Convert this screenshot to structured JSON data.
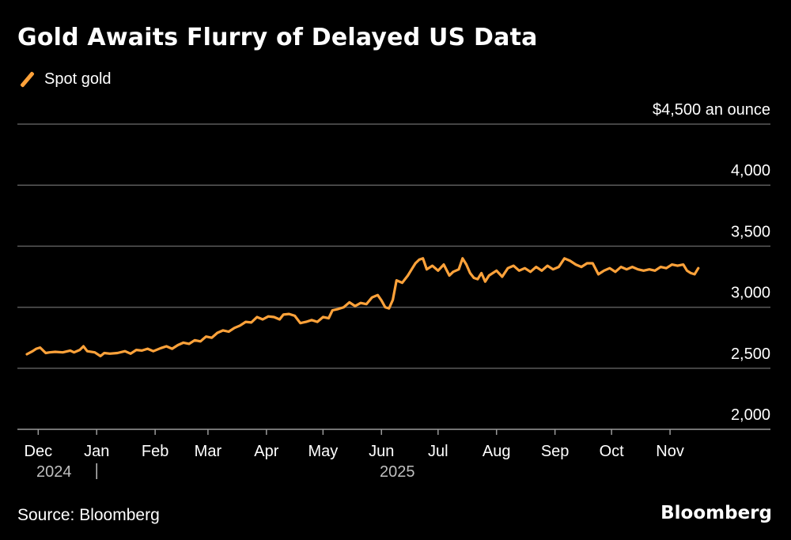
{
  "title": "Gold Awaits Flurry of Delayed US Data",
  "source": "Source: Bloomberg",
  "brand": "Bloomberg",
  "colors": {
    "background": "#000000",
    "series": "#ffa23a",
    "grid": "#5a5a5a",
    "text": "#ffffff"
  },
  "chart_data": {
    "type": "line",
    "x_start": "2024-11-25",
    "x_end": "2025-11-19",
    "ylim": [
      2000,
      4500
    ],
    "yticks": [
      {
        "value": 4500,
        "label": "$4,500 an ounce"
      },
      {
        "value": 4000,
        "label": "4,000"
      },
      {
        "value": 3500,
        "label": "3,500"
      },
      {
        "value": 3000,
        "label": "3,000"
      },
      {
        "value": 2500,
        "label": "2,500"
      },
      {
        "value": 2000,
        "label": "2,000"
      }
    ],
    "xticks": [
      {
        "date": "2024-12-01",
        "label": "Dec"
      },
      {
        "date": "2025-01-01",
        "label": "Jan"
      },
      {
        "date": "2025-02-01",
        "label": "Feb"
      },
      {
        "date": "2025-03-01",
        "label": "Mar"
      },
      {
        "date": "2025-04-01",
        "label": "Apr"
      },
      {
        "date": "2025-05-01",
        "label": "May"
      },
      {
        "date": "2025-06-01",
        "label": "Jun"
      },
      {
        "date": "2025-07-01",
        "label": "Jul"
      },
      {
        "date": "2025-08-01",
        "label": "Aug"
      },
      {
        "date": "2025-09-01",
        "label": "Sep"
      },
      {
        "date": "2025-10-01",
        "label": "Oct"
      },
      {
        "date": "2025-11-01",
        "label": "Nov"
      }
    ],
    "year_labels": [
      {
        "date": "2024-12-01",
        "label": "2024"
      },
      {
        "date": "2025-06-01",
        "label": "2025"
      }
    ],
    "year_divider": "2025-01-01",
    "grid": true,
    "legend": "top-left",
    "series": [
      {
        "name": "Spot gold",
        "points": [
          [
            "2024-11-25",
            2615
          ],
          [
            "2024-11-28",
            2640
          ],
          [
            "2024-11-30",
            2660
          ],
          [
            "2024-12-02",
            2670
          ],
          [
            "2024-12-05",
            2625
          ],
          [
            "2024-12-07",
            2630
          ],
          [
            "2024-12-10",
            2635
          ],
          [
            "2024-12-14",
            2630
          ],
          [
            "2024-12-18",
            2645
          ],
          [
            "2024-12-20",
            2630
          ],
          [
            "2024-12-23",
            2650
          ],
          [
            "2024-12-25",
            2680
          ],
          [
            "2024-12-27",
            2640
          ],
          [
            "2024-12-31",
            2630
          ],
          [
            "2025-01-03",
            2600
          ],
          [
            "2025-01-05",
            2625
          ],
          [
            "2025-01-08",
            2620
          ],
          [
            "2025-01-12",
            2625
          ],
          [
            "2025-01-16",
            2640
          ],
          [
            "2025-01-19",
            2620
          ],
          [
            "2025-01-22",
            2650
          ],
          [
            "2025-01-25",
            2645
          ],
          [
            "2025-01-28",
            2660
          ],
          [
            "2025-01-31",
            2640
          ],
          [
            "2025-02-04",
            2665
          ],
          [
            "2025-02-07",
            2680
          ],
          [
            "2025-02-10",
            2660
          ],
          [
            "2025-02-13",
            2690
          ],
          [
            "2025-02-16",
            2710
          ],
          [
            "2025-02-19",
            2700
          ],
          [
            "2025-02-22",
            2730
          ],
          [
            "2025-02-25",
            2720
          ],
          [
            "2025-02-28",
            2760
          ],
          [
            "2025-03-03",
            2750
          ],
          [
            "2025-03-06",
            2790
          ],
          [
            "2025-03-09",
            2810
          ],
          [
            "2025-03-12",
            2800
          ],
          [
            "2025-03-15",
            2830
          ],
          [
            "2025-03-18",
            2850
          ],
          [
            "2025-03-21",
            2880
          ],
          [
            "2025-03-24",
            2875
          ],
          [
            "2025-03-27",
            2920
          ],
          [
            "2025-03-30",
            2900
          ],
          [
            "2025-04-02",
            2925
          ],
          [
            "2025-04-05",
            2920
          ],
          [
            "2025-04-08",
            2900
          ],
          [
            "2025-04-10",
            2940
          ],
          [
            "2025-04-13",
            2945
          ],
          [
            "2025-04-16",
            2930
          ],
          [
            "2025-04-19",
            2870
          ],
          [
            "2025-04-22",
            2880
          ],
          [
            "2025-04-25",
            2895
          ],
          [
            "2025-04-28",
            2880
          ],
          [
            "2025-05-01",
            2920
          ],
          [
            "2025-05-04",
            2910
          ],
          [
            "2025-05-06",
            2975
          ],
          [
            "2025-05-09",
            2985
          ],
          [
            "2025-05-12",
            3000
          ],
          [
            "2025-05-15",
            3040
          ],
          [
            "2025-05-18",
            3010
          ],
          [
            "2025-05-21",
            3035
          ],
          [
            "2025-05-24",
            3025
          ],
          [
            "2025-05-27",
            3080
          ],
          [
            "2025-05-30",
            3100
          ],
          [
            "2025-06-01",
            3055
          ],
          [
            "2025-06-03",
            3000
          ],
          [
            "2025-06-05",
            2990
          ],
          [
            "2025-06-07",
            3060
          ],
          [
            "2025-06-09",
            3220
          ],
          [
            "2025-06-12",
            3200
          ],
          [
            "2025-06-15",
            3260
          ],
          [
            "2025-06-17",
            3310
          ],
          [
            "2025-06-19",
            3360
          ],
          [
            "2025-06-21",
            3390
          ],
          [
            "2025-06-23",
            3400
          ],
          [
            "2025-06-25",
            3310
          ],
          [
            "2025-06-28",
            3340
          ],
          [
            "2025-07-01",
            3300
          ],
          [
            "2025-07-04",
            3350
          ],
          [
            "2025-07-07",
            3260
          ],
          [
            "2025-07-09",
            3290
          ],
          [
            "2025-07-12",
            3310
          ],
          [
            "2025-07-14",
            3400
          ],
          [
            "2025-07-16",
            3350
          ],
          [
            "2025-07-18",
            3280
          ],
          [
            "2025-07-20",
            3240
          ],
          [
            "2025-07-22",
            3230
          ],
          [
            "2025-07-24",
            3280
          ],
          [
            "2025-07-26",
            3210
          ],
          [
            "2025-07-28",
            3260
          ],
          [
            "2025-08-01",
            3300
          ],
          [
            "2025-08-04",
            3250
          ],
          [
            "2025-08-07",
            3320
          ],
          [
            "2025-08-10",
            3340
          ],
          [
            "2025-08-13",
            3300
          ],
          [
            "2025-08-16",
            3320
          ],
          [
            "2025-08-19",
            3290
          ],
          [
            "2025-08-22",
            3330
          ],
          [
            "2025-08-25",
            3300
          ],
          [
            "2025-08-28",
            3340
          ],
          [
            "2025-08-31",
            3310
          ],
          [
            "2025-09-03",
            3330
          ],
          [
            "2025-09-06",
            3400
          ],
          [
            "2025-09-09",
            3380
          ],
          [
            "2025-09-12",
            3350
          ],
          [
            "2025-09-15",
            3330
          ],
          [
            "2025-09-18",
            3360
          ],
          [
            "2025-09-21",
            3360
          ],
          [
            "2025-09-24",
            3270
          ],
          [
            "2025-09-27",
            3300
          ],
          [
            "2025-09-30",
            3320
          ],
          [
            "2025-10-03",
            3290
          ],
          [
            "2025-10-06",
            3330
          ],
          [
            "2025-10-09",
            3310
          ],
          [
            "2025-10-12",
            3330
          ],
          [
            "2025-10-15",
            3310
          ],
          [
            "2025-10-18",
            3300
          ],
          [
            "2025-10-21",
            3310
          ],
          [
            "2025-10-24",
            3300
          ],
          [
            "2025-10-27",
            3330
          ],
          [
            "2025-10-30",
            3320
          ],
          [
            "2025-11-02",
            3350
          ],
          [
            "2025-11-05",
            3340
          ],
          [
            "2025-11-08",
            3350
          ],
          [
            "2025-11-10",
            3300
          ],
          [
            "2025-11-12",
            3280
          ],
          [
            "2025-11-14",
            3270
          ],
          [
            "2025-11-16",
            3320
          ]
        ]
      }
    ]
  }
}
